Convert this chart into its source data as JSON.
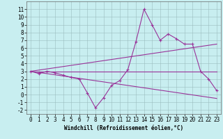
{
  "x": [
    0,
    1,
    2,
    3,
    4,
    5,
    6,
    7,
    8,
    9,
    10,
    11,
    12,
    13,
    14,
    15,
    16,
    17,
    18,
    19,
    20,
    21,
    22,
    23
  ],
  "line1": [
    3,
    2.7,
    3,
    2.8,
    2.5,
    2.2,
    2,
    0.2,
    -1.7,
    -0.4,
    1.2,
    1.8,
    3.2,
    6.8,
    11,
    9,
    7,
    7.8,
    7.2,
    6.5,
    6.5,
    3,
    2,
    0.5
  ],
  "line2": [
    [
      0,
      3
    ],
    [
      23,
      3
    ]
  ],
  "line3": [
    [
      0,
      3
    ],
    [
      23,
      -0.5
    ]
  ],
  "line4": [
    [
      0,
      3
    ],
    [
      23,
      6.5
    ]
  ],
  "line_color": "#993399",
  "bg_color": "#c8eef0",
  "grid_color": "#9bbcbe",
  "xlabel": "Windchill (Refroidissement éolien,°C)",
  "ylim": [
    -2.5,
    12
  ],
  "xlim": [
    -0.5,
    23.5
  ],
  "yticks": [
    -2,
    -1,
    0,
    1,
    2,
    3,
    4,
    5,
    6,
    7,
    8,
    9,
    10,
    11
  ],
  "xticks": [
    0,
    1,
    2,
    3,
    4,
    5,
    6,
    7,
    8,
    9,
    10,
    11,
    12,
    13,
    14,
    15,
    16,
    17,
    18,
    19,
    20,
    21,
    22,
    23
  ],
  "tick_fontsize": 5.5,
  "xlabel_fontsize": 5.5,
  "linewidth": 0.8,
  "markersize": 3.5,
  "markeredgewidth": 0.8
}
